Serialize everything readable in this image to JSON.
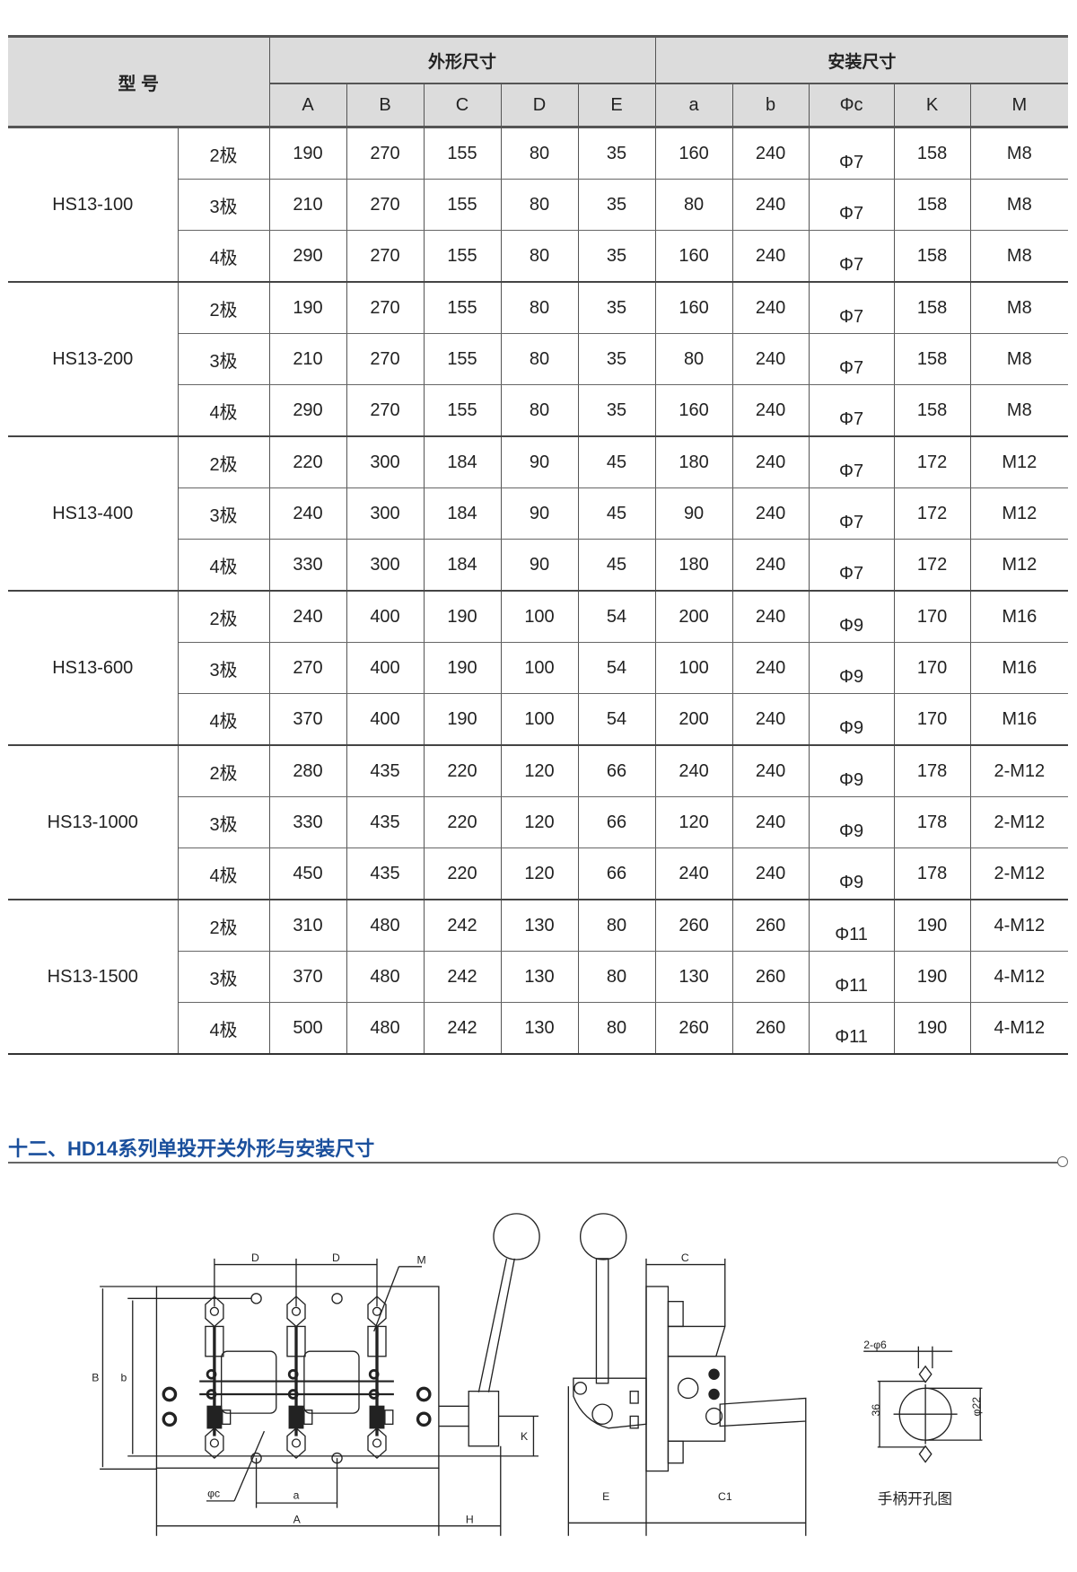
{
  "table": {
    "model_header": "型 号",
    "group_headers": [
      "外形尺寸",
      "安装尺寸"
    ],
    "columns": [
      "A",
      "B",
      "C",
      "D",
      "E",
      "a",
      "b",
      "Φc",
      "K",
      "M"
    ],
    "groups": [
      {
        "model": "HS13-100",
        "rows": [
          {
            "pole": "2极",
            "values": [
              "190",
              "270",
              "155",
              "80",
              "35",
              "160",
              "240",
              "Φ7",
              "158",
              "M8"
            ]
          },
          {
            "pole": "3极",
            "values": [
              "210",
              "270",
              "155",
              "80",
              "35",
              "80",
              "240",
              "Φ7",
              "158",
              "M8"
            ]
          },
          {
            "pole": "4极",
            "values": [
              "290",
              "270",
              "155",
              "80",
              "35",
              "160",
              "240",
              "Φ7",
              "158",
              "M8"
            ]
          }
        ]
      },
      {
        "model": "HS13-200",
        "rows": [
          {
            "pole": "2极",
            "values": [
              "190",
              "270",
              "155",
              "80",
              "35",
              "160",
              "240",
              "Φ7",
              "158",
              "M8"
            ]
          },
          {
            "pole": "3极",
            "values": [
              "210",
              "270",
              "155",
              "80",
              "35",
              "80",
              "240",
              "Φ7",
              "158",
              "M8"
            ]
          },
          {
            "pole": "4极",
            "values": [
              "290",
              "270",
              "155",
              "80",
              "35",
              "160",
              "240",
              "Φ7",
              "158",
              "M8"
            ]
          }
        ]
      },
      {
        "model": "HS13-400",
        "rows": [
          {
            "pole": "2极",
            "values": [
              "220",
              "300",
              "184",
              "90",
              "45",
              "180",
              "240",
              "Φ7",
              "172",
              "M12"
            ]
          },
          {
            "pole": "3极",
            "values": [
              "240",
              "300",
              "184",
              "90",
              "45",
              "90",
              "240",
              "Φ7",
              "172",
              "M12"
            ]
          },
          {
            "pole": "4极",
            "values": [
              "330",
              "300",
              "184",
              "90",
              "45",
              "180",
              "240",
              "Φ7",
              "172",
              "M12"
            ]
          }
        ]
      },
      {
        "model": "HS13-600",
        "rows": [
          {
            "pole": "2极",
            "values": [
              "240",
              "400",
              "190",
              "100",
              "54",
              "200",
              "240",
              "Φ9",
              "170",
              "M16"
            ]
          },
          {
            "pole": "3极",
            "values": [
              "270",
              "400",
              "190",
              "100",
              "54",
              "100",
              "240",
              "Φ9",
              "170",
              "M16"
            ]
          },
          {
            "pole": "4极",
            "values": [
              "370",
              "400",
              "190",
              "100",
              "54",
              "200",
              "240",
              "Φ9",
              "170",
              "M16"
            ]
          }
        ]
      },
      {
        "model": "HS13-1000",
        "rows": [
          {
            "pole": "2极",
            "values": [
              "280",
              "435",
              "220",
              "120",
              "66",
              "240",
              "240",
              "Φ9",
              "178",
              "2-M12"
            ]
          },
          {
            "pole": "3极",
            "values": [
              "330",
              "435",
              "220",
              "120",
              "66",
              "120",
              "240",
              "Φ9",
              "178",
              "2-M12"
            ]
          },
          {
            "pole": "4极",
            "values": [
              "450",
              "435",
              "220",
              "120",
              "66",
              "240",
              "240",
              "Φ9",
              "178",
              "2-M12"
            ]
          }
        ]
      },
      {
        "model": "HS13-1500",
        "rows": [
          {
            "pole": "2极",
            "values": [
              "310",
              "480",
              "242",
              "130",
              "80",
              "260",
              "260",
              "Φ11",
              "190",
              "4-M12"
            ]
          },
          {
            "pole": "3极",
            "values": [
              "370",
              "480",
              "242",
              "130",
              "80",
              "130",
              "260",
              "Φ11",
              "190",
              "4-M12"
            ]
          },
          {
            "pole": "4极",
            "values": [
              "500",
              "480",
              "242",
              "130",
              "80",
              "260",
              "260",
              "Φ11",
              "190",
              "4-M12"
            ]
          }
        ]
      }
    ]
  },
  "section": {
    "title": "十二、HD14系列单投开关外形与安装尺寸",
    "title_color": "#1a4f9c"
  },
  "drawing": {
    "front_labels": {
      "D1": "D",
      "D2": "D",
      "M": "M",
      "B": "B",
      "b": "b",
      "phic": "φc",
      "a": "a",
      "A": "A",
      "H": "H",
      "K": "K"
    },
    "side_labels": {
      "C": "C",
      "E": "E",
      "C1": "C1"
    },
    "hole_labels": {
      "holes": "2-φ6",
      "h36": "36",
      "d22": "φ22",
      "caption": "手柄开孔图"
    }
  }
}
